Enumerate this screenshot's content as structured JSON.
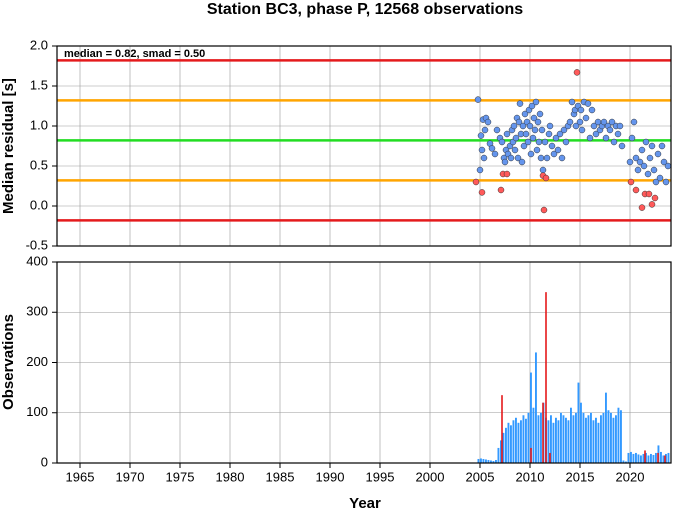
{
  "chart_data": [
    {
      "type": "scatter",
      "title": "Station BC3, phase P, 12568 observations",
      "ylabel": "Median residual [s]",
      "annotation": "median = 0.82, smad = 0.50",
      "xlim": [
        1962.7,
        2024.1
      ],
      "ylim": [
        -0.5,
        2.0
      ],
      "yticks": [
        -0.5,
        {
          "value": 0,
          "label": "0.0"
        },
        0.5,
        {
          "value": 1,
          "label": "1.0"
        },
        1.5,
        {
          "value": 2,
          "label": "2.0"
        }
      ],
      "grid": true,
      "hlines": [
        {
          "value": 1.82,
          "color": "#e41a1c"
        },
        {
          "value": 1.32,
          "color": "#ffa500"
        },
        {
          "value": 0.82,
          "color": "#22dd22"
        },
        {
          "value": 0.32,
          "color": "#ffa500"
        },
        {
          "value": -0.18,
          "color": "#e41a1c"
        }
      ],
      "series": [
        {
          "color": "#6495ed",
          "x": [
            2004.8,
            2005.0,
            2005.1,
            2005.2,
            2005.3,
            2005.4,
            2005.5,
            2005.6,
            2005.8,
            2006.0,
            2006.2,
            2006.5,
            2006.7,
            2007.0,
            2007.2,
            2007.4,
            2007.5,
            2007.6,
            2007.7,
            2007.8,
            2008.0,
            2008.1,
            2008.2,
            2008.3,
            2008.4,
            2008.5,
            2008.6,
            2008.7,
            2008.8,
            2008.9,
            2009.0,
            2009.1,
            2009.2,
            2009.3,
            2009.4,
            2009.5,
            2009.6,
            2009.7,
            2009.8,
            2009.9,
            2010.0,
            2010.1,
            2010.2,
            2010.3,
            2010.4,
            2010.5,
            2010.6,
            2010.7,
            2010.8,
            2010.9,
            2011.0,
            2011.1,
            2011.2,
            2011.3,
            2011.5,
            2011.7,
            2011.9,
            2012.0,
            2012.2,
            2012.4,
            2012.6,
            2012.8,
            2013.0,
            2013.2,
            2013.4,
            2013.6,
            2013.8,
            2014.0,
            2014.2,
            2014.4,
            2014.5,
            2014.6,
            2014.8,
            2015.0,
            2015.1,
            2015.2,
            2015.4,
            2015.6,
            2015.8,
            2016.0,
            2016.2,
            2016.4,
            2016.6,
            2016.8,
            2017.0,
            2017.2,
            2017.4,
            2017.6,
            2017.8,
            2018.0,
            2018.2,
            2018.4,
            2018.6,
            2018.8,
            2019.0,
            2019.2,
            2020.0,
            2020.2,
            2020.4,
            2020.6,
            2020.8,
            2021.0,
            2021.2,
            2021.4,
            2021.6,
            2021.8,
            2022.0,
            2022.2,
            2022.4,
            2022.6,
            2022.8,
            2023.0,
            2023.2,
            2023.4,
            2023.6,
            2023.8
          ],
          "values": [
            1.33,
            0.45,
            0.88,
            0.7,
            1.08,
            0.6,
            0.95,
            1.1,
            1.05,
            0.78,
            0.72,
            0.65,
            0.95,
            0.85,
            0.8,
            0.6,
            0.55,
            0.7,
            0.9,
            0.65,
            0.75,
            0.6,
            0.95,
            0.8,
            1.0,
            0.7,
            0.85,
            1.1,
            0.6,
            1.05,
            1.28,
            0.9,
            0.55,
            1.0,
            0.75,
            1.15,
            0.9,
            1.05,
            0.8,
            1.2,
            1.0,
            0.65,
            1.25,
            0.85,
            1.1,
            0.95,
            1.3,
            0.7,
            1.05,
            0.8,
            1.15,
            0.6,
            0.95,
            0.45,
            0.8,
            0.6,
            0.9,
            1.0,
            0.75,
            0.65,
            0.85,
            0.7,
            0.9,
            0.6,
            0.95,
            0.8,
            1.0,
            1.05,
            1.3,
            1.15,
            1.2,
            1.0,
            1.25,
            1.05,
            1.2,
            0.95,
            1.3,
            1.1,
            1.28,
            0.85,
            1.2,
            1.0,
            0.9,
            1.05,
            0.95,
            1.0,
            1.05,
            0.85,
            1.0,
            0.95,
            1.05,
            0.8,
            1.0,
            0.9,
            1.0,
            0.75,
            0.55,
            0.85,
            1.05,
            0.6,
            0.45,
            0.55,
            0.7,
            0.5,
            0.8,
            0.4,
            0.6,
            0.75,
            0.45,
            0.3,
            0.65,
            0.35,
            0.75,
            0.55,
            0.3,
            0.5
          ]
        },
        {
          "color": "#ff5a5a",
          "x": [
            2004.6,
            2005.2,
            2007.1,
            2007.3,
            2007.7,
            2011.3,
            2011.4,
            2011.6,
            2014.7,
            2020.1,
            2020.6,
            2021.2,
            2021.5,
            2021.9,
            2022.2,
            2022.5
          ],
          "values": [
            0.3,
            0.17,
            0.2,
            0.4,
            0.4,
            0.38,
            -0.05,
            0.35,
            1.67,
            0.3,
            0.2,
            -0.02,
            0.15,
            0.15,
            0.02,
            0.1
          ]
        }
      ]
    },
    {
      "type": "histogram",
      "xlabel": "Year",
      "ylabel": "Observations",
      "xlim": [
        1962.7,
        2024.1
      ],
      "ylim": [
        0,
        400
      ],
      "xticks": [
        1965,
        1970,
        1975,
        1980,
        1985,
        1990,
        1995,
        2000,
        2005,
        2010,
        2015,
        2020
      ],
      "yticks": [
        0,
        100,
        200,
        300,
        400
      ],
      "grid": true,
      "color": "#3399ff",
      "bins": [
        2004.75,
        2005,
        2005.25,
        2005.5,
        2005.75,
        2006,
        2006.25,
        2006.5,
        2006.75,
        2007,
        2007.25,
        2007.5,
        2007.75,
        2008,
        2008.25,
        2008.5,
        2008.75,
        2009,
        2009.25,
        2009.5,
        2009.75,
        2010,
        2010.25,
        2010.5,
        2010.75,
        2011,
        2011.25,
        2011.5,
        2011.75,
        2012,
        2012.25,
        2012.5,
        2012.75,
        2013,
        2013.25,
        2013.5,
        2013.75,
        2014,
        2014.25,
        2014.5,
        2014.75,
        2015,
        2015.25,
        2015.5,
        2015.75,
        2016,
        2016.25,
        2016.5,
        2016.75,
        2017,
        2017.25,
        2017.5,
        2017.75,
        2018,
        2018.25,
        2018.5,
        2018.75,
        2019,
        2019.25,
        2019.5,
        2019.75,
        2020,
        2020.25,
        2020.5,
        2020.75,
        2021,
        2021.25,
        2021.5,
        2021.75,
        2022,
        2022.25,
        2022.5,
        2022.75,
        2023,
        2023.25,
        2023.5,
        2023.75,
        2024
      ],
      "counts": [
        8,
        9,
        8,
        7,
        6,
        5,
        4,
        6,
        30,
        45,
        60,
        70,
        80,
        75,
        85,
        90,
        80,
        85,
        95,
        88,
        100,
        180,
        110,
        220,
        95,
        100,
        120,
        90,
        85,
        95,
        80,
        90,
        85,
        100,
        95,
        90,
        85,
        110,
        95,
        100,
        160,
        120,
        100,
        90,
        95,
        100,
        85,
        90,
        80,
        95,
        100,
        140,
        105,
        100,
        90,
        95,
        110,
        105,
        5,
        3,
        20,
        22,
        18,
        20,
        17,
        15,
        18,
        20,
        15,
        18,
        16,
        20,
        35,
        22,
        15,
        18,
        20
      ],
      "spikes": {
        "color": "#e41a1c",
        "x": [
          2007.2,
          2010.1,
          2011.3,
          2011.6,
          2012.0,
          2021.5,
          2022.8,
          2023.5
        ],
        "values": [
          135,
          30,
          120,
          340,
          20,
          25,
          20,
          15
        ]
      }
    }
  ]
}
